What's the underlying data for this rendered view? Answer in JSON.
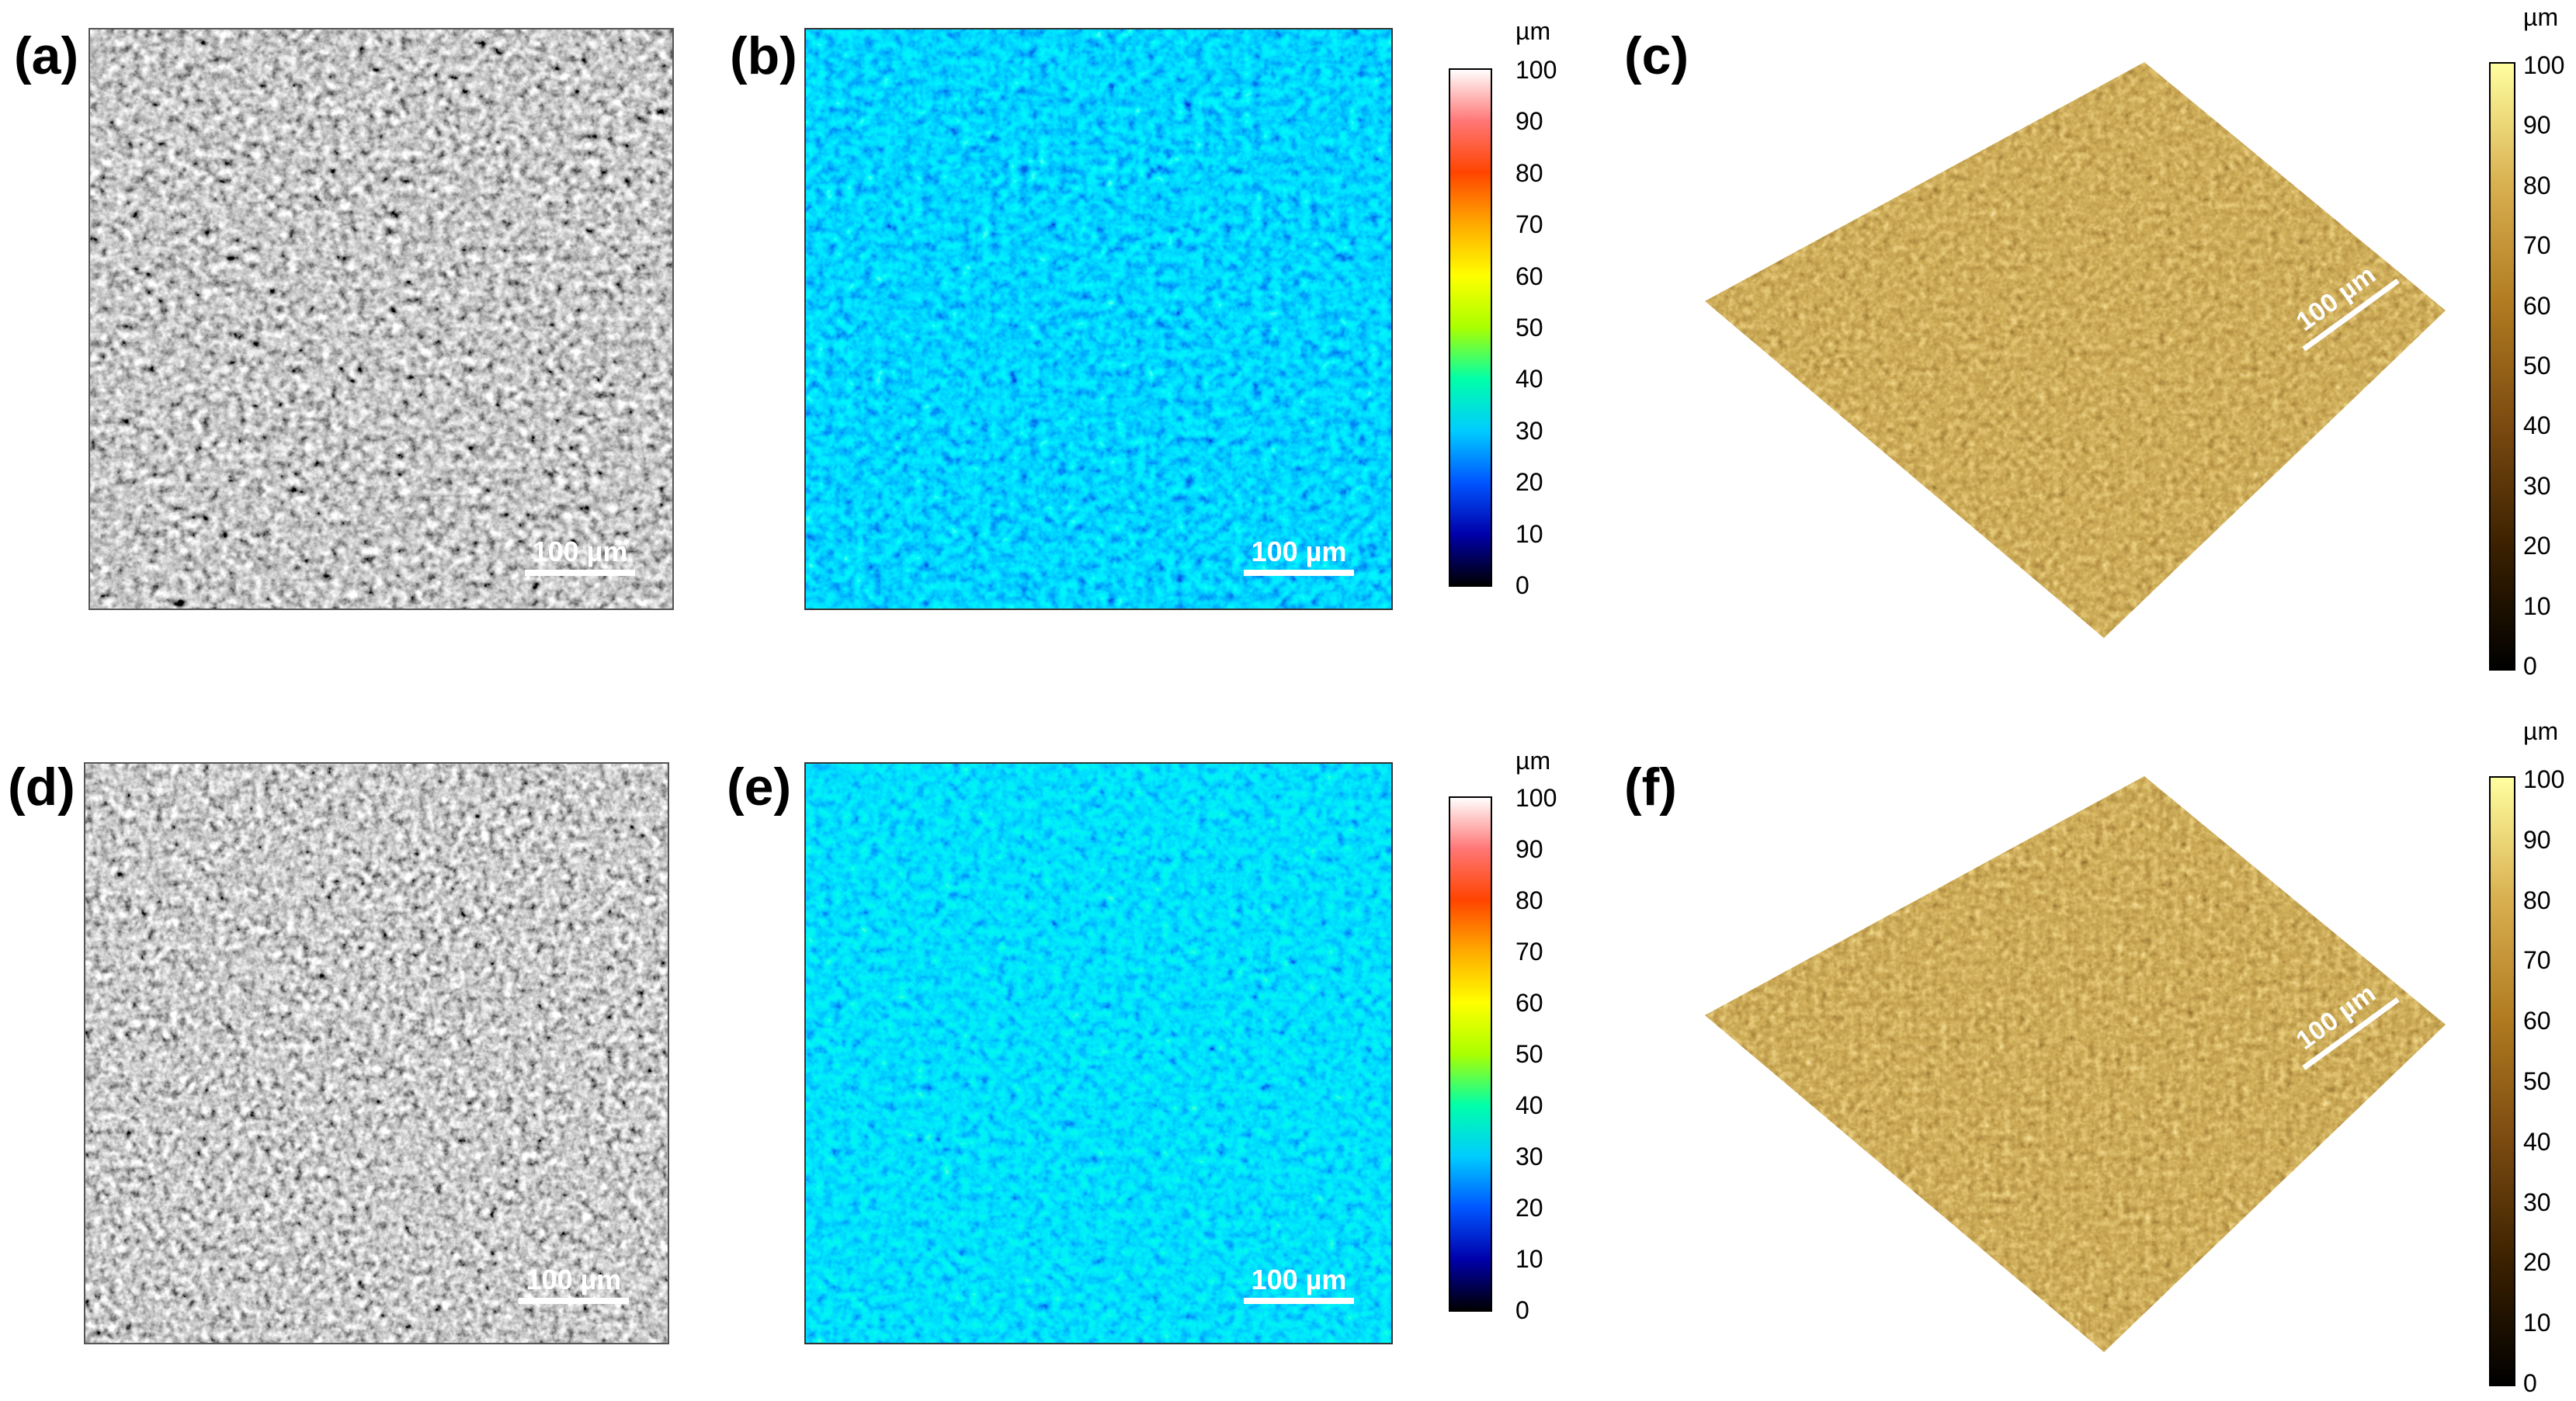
{
  "panels": {
    "a": {
      "label": "(a)",
      "type": "sem",
      "scale": "100 µm"
    },
    "b": {
      "label": "(b)",
      "type": "height-map",
      "scale": "100 µm"
    },
    "c": {
      "label": "(c)",
      "type": "3d-surface",
      "scale": "100 µm"
    },
    "d": {
      "label": "(d)",
      "type": "sem",
      "scale": "100 µm"
    },
    "e": {
      "label": "(e)",
      "type": "height-map",
      "scale": "100 µm"
    },
    "f": {
      "label": "(f)",
      "type": "3d-surface",
      "scale": "100 µm"
    }
  },
  "colorbars": {
    "jet": {
      "unit": "µm",
      "ticks": [
        "100",
        "90",
        "80",
        "70",
        "60",
        "50",
        "40",
        "30",
        "20",
        "10",
        "0"
      ],
      "range": [
        0,
        100
      ],
      "colors": [
        "#000000",
        "#0000aa",
        "#0055ff",
        "#00ccff",
        "#00ffaa",
        "#aaff00",
        "#ffff00",
        "#ffaa00",
        "#ff4400",
        "#ff7777",
        "#ffffff"
      ]
    },
    "gold": {
      "unit": "µm",
      "ticks": [
        "100",
        "90",
        "80",
        "70",
        "60",
        "50",
        "40",
        "30",
        "20",
        "10",
        "0"
      ],
      "range": [
        0,
        100
      ],
      "colors": [
        "#000000",
        "#3a2000",
        "#7a4a10",
        "#b07a20",
        "#d9b050",
        "#ffffa0"
      ]
    }
  }
}
